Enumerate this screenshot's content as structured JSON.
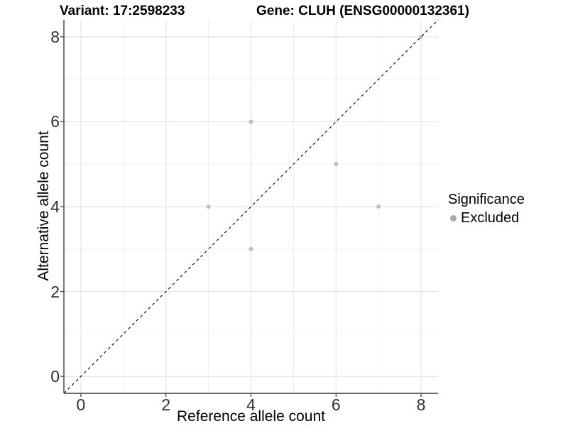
{
  "titles": {
    "variant": "Variant: 17:2598233",
    "gene": "Gene: CLUH (ENSG00000132361)"
  },
  "chart_data": {
    "type": "scatter",
    "xlabel": "Reference allele count",
    "ylabel": "Alternative allele count",
    "xlim": [
      -0.4,
      8.4
    ],
    "ylim": [
      -0.4,
      8.4
    ],
    "x_ticks": [
      0,
      2,
      4,
      6,
      8
    ],
    "y_ticks": [
      0,
      2,
      4,
      6,
      8
    ],
    "x_minor": [
      1,
      3,
      5,
      7
    ],
    "y_minor": [
      1,
      3,
      5,
      7
    ],
    "grid": "on",
    "series": [
      {
        "name": "Excluded",
        "color": "#bdbdbd",
        "points": [
          [
            3,
            4
          ],
          [
            4,
            3
          ],
          [
            4,
            6
          ],
          [
            6,
            5
          ],
          [
            7,
            4
          ],
          [
            8,
            8
          ]
        ]
      }
    ],
    "reference_line": {
      "type": "identity",
      "style": "dashed",
      "color": "#000000",
      "from": -0.4,
      "to": 8.4
    },
    "legend": {
      "position": "right",
      "title": "Significance",
      "items": [
        {
          "label": "Excluded",
          "color": "#a9a9a9"
        }
      ]
    }
  },
  "colors": {
    "axis_line": "#3c3c3c",
    "grid_major": "#e4e4e4",
    "grid_minor": "#efefef",
    "tick_text": "#303030",
    "background": "#ffffff"
  }
}
